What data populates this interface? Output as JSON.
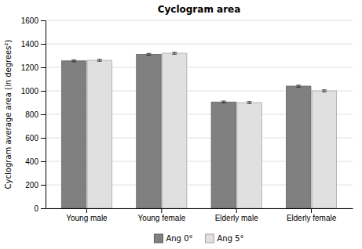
{
  "chart_data": {
    "type": "bar",
    "title": "Cyclogram area",
    "ylabel": "Cyclogram average area (in degrees²)",
    "categories": [
      "Young male",
      "Young female",
      "Elderly male",
      "Elderly female"
    ],
    "series": [
      {
        "name": "Ang 0°",
        "color": "#808080",
        "values": [
          1255,
          1310,
          905,
          1040
        ],
        "errors": [
          8,
          8,
          8,
          8
        ]
      },
      {
        "name": "Ang 5°",
        "color": "#e0e0e0",
        "values": [
          1260,
          1320,
          900,
          1000
        ],
        "errors": [
          8,
          8,
          8,
          8
        ]
      }
    ],
    "ylim": [
      0,
      1600
    ],
    "yticks": [
      0,
      200,
      400,
      600,
      800,
      1000,
      1200,
      1400,
      1600
    ],
    "grid": true,
    "legend": "bottom"
  }
}
